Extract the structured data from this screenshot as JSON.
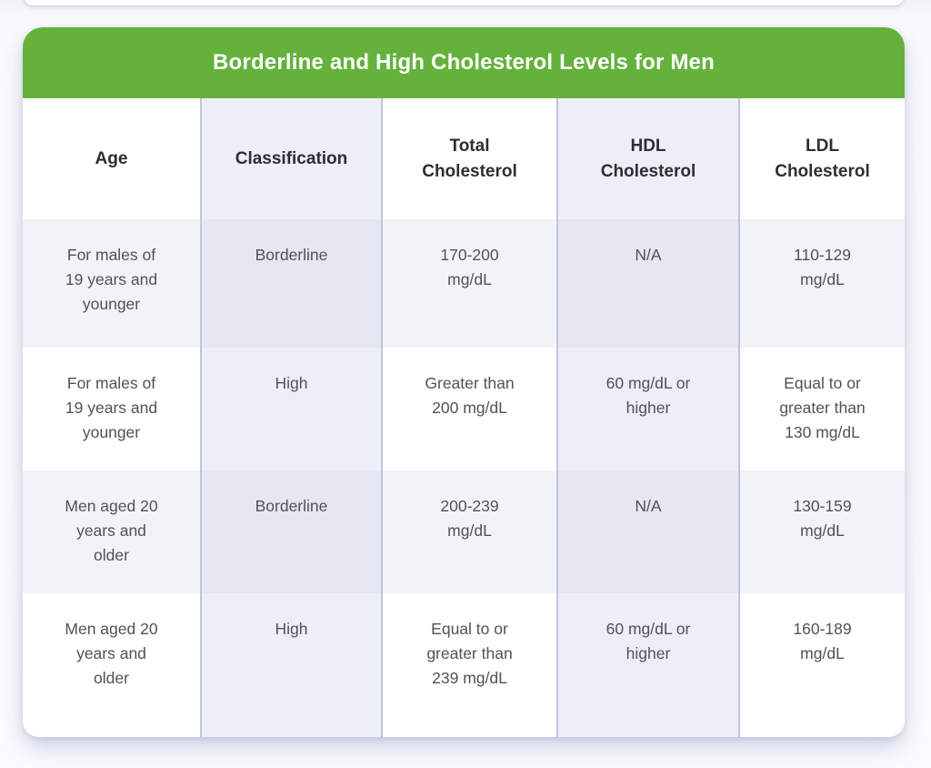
{
  "colors": {
    "title_bar_green": "#64b23c",
    "column_tint": "#edeff7",
    "row_tint": "#f2f3f9",
    "combined_tint": "#e5e7f2",
    "separator": "#bfc5db",
    "header_text": "#2e2e32",
    "body_text": "#515158",
    "title_text": "#ffffff"
  },
  "display": {
    "title": "Borderline and High Cholesterol Levels for Men",
    "headers": [
      "Age",
      "Classification",
      "Total\nCholesterol",
      "HDL\nCholesterol",
      "LDL\nCholesterol"
    ],
    "rows": [
      [
        "For males of\n19 years and\nyounger",
        "Borderline",
        "170-200\nmg/dL",
        "N/A",
        "110-129\nmg/dL"
      ],
      [
        "For males of\n19 years and\nyounger",
        "High",
        "Greater than\n200 mg/dL",
        "60 mg/dL or\nhigher",
        "Equal to or\ngreater than\n130 mg/dL"
      ],
      [
        "Men aged 20\nyears and\nolder",
        "Borderline",
        "200-239\nmg/dL",
        "N/A",
        "130-159\nmg/dL"
      ],
      [
        "Men aged 20\nyears and\nolder",
        "High",
        "Equal to or\ngreater than\n239 mg/dL",
        "60 mg/dL or\nhigher",
        "160-189\nmg/dL"
      ]
    ]
  },
  "chart_data": {
    "type": "table",
    "title": "Borderline and High Cholesterol Levels for Men",
    "columns": [
      "Age",
      "Classification",
      "Total Cholesterol",
      "HDL Cholesterol",
      "LDL Cholesterol"
    ],
    "rows": [
      [
        "For males of 19 years and younger",
        "Borderline",
        "170-200 mg/dL",
        "N/A",
        "110-129 mg/dL"
      ],
      [
        "For males of 19 years and younger",
        "High",
        "Greater than 200 mg/dL",
        "60 mg/dL or higher",
        "Equal to or greater than 130 mg/dL"
      ],
      [
        "Men aged 20 years and older",
        "Borderline",
        "200-239 mg/dL",
        "N/A",
        "130-159 mg/dL"
      ],
      [
        "Men aged 20 years and older",
        "High",
        "Equal to or greater than 239 mg/dL",
        "60 mg/dL or higher",
        "160-189 mg/dL"
      ]
    ],
    "layout": {
      "header_row": true,
      "tinted_columns": [
        "Classification",
        "HDL Cholesterol"
      ],
      "tinted_rows": [
        "Borderline rows"
      ]
    }
  }
}
